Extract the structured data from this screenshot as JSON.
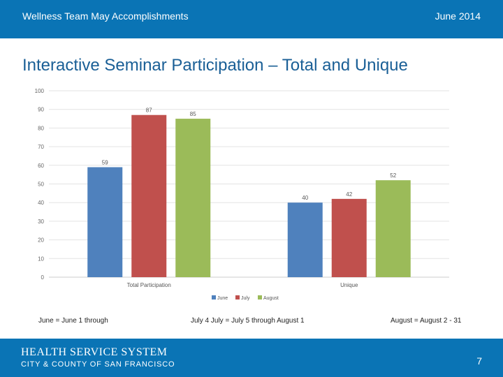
{
  "header": {
    "left": "Wellness Team May Accomplishments",
    "right": "June 2014"
  },
  "title": "Interactive Seminar Participation – Total and Unique",
  "colors": {
    "bar": "#0a74b5",
    "june": "#4f81bd",
    "july": "#c0504d",
    "august": "#9bbb59"
  },
  "chart_data": {
    "type": "bar",
    "title": "",
    "xlabel": "",
    "ylabel": "",
    "categories": [
      "Total Participation",
      "Unique"
    ],
    "series": [
      {
        "name": "June",
        "values": [
          59,
          40
        ]
      },
      {
        "name": "July",
        "values": [
          87,
          42
        ]
      },
      {
        "name": "August",
        "values": [
          85,
          52
        ]
      }
    ],
    "ylim": [
      0,
      100
    ],
    "yticks": [
      0,
      10,
      20,
      30,
      40,
      50,
      60,
      70,
      80,
      90,
      100
    ],
    "grid": true,
    "legend": "bottom"
  },
  "footnotes": [
    "June = June 1 through",
    "July 4 July = July 5 through August 1",
    "August = August 2 - 31"
  ],
  "footer": {
    "org": "HEALTH SERVICE SYSTEM",
    "sub": "CITY & COUNTY OF SAN FRANCISCO",
    "page": "7"
  }
}
